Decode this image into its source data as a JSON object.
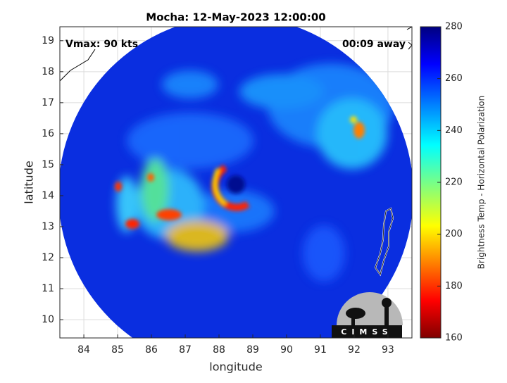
{
  "chart_data": {
    "type": "heatmap",
    "title": "Mocha: 12-May-2023 12:00:00",
    "xlabel": "longitude",
    "ylabel": "latitude",
    "xlim": [
      83.29,
      93.71
    ],
    "ylim": [
      9.41,
      19.45
    ],
    "xticks": [
      84,
      85,
      86,
      87,
      88,
      89,
      90,
      91,
      92,
      93
    ],
    "yticks": [
      10,
      11,
      12,
      13,
      14,
      15,
      16,
      17,
      18,
      19
    ],
    "grid": true,
    "annotations": [
      "Vmax: 90 kts",
      "00:09 away"
    ],
    "logo": "CIMSS",
    "colorbar": {
      "label": "Brightness Temp - Horizontal Polarization",
      "lim": [
        160,
        280
      ],
      "ticks": [
        160,
        180,
        200,
        220,
        240,
        260,
        280
      ],
      "colormap": "jet"
    }
  }
}
